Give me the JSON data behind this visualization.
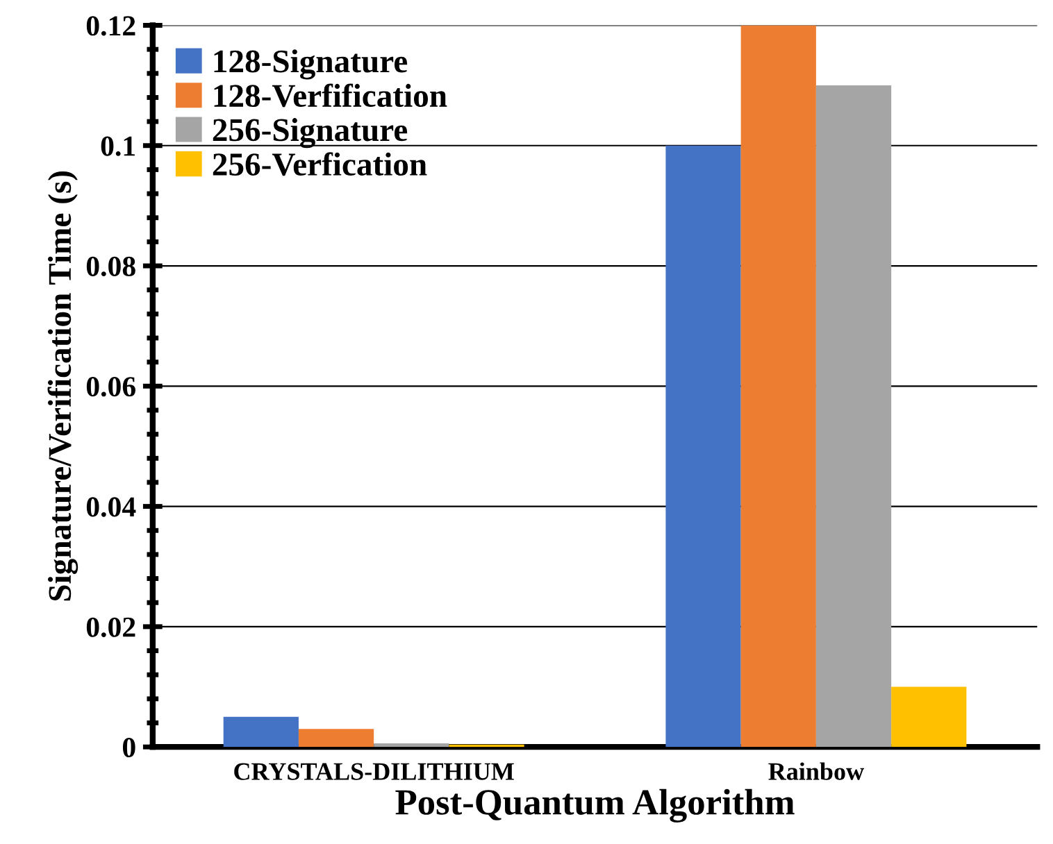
{
  "chart_data": {
    "type": "bar",
    "xlabel": "Post-Quantum Algorithm",
    "ylabel": "Signature/Verification Time (s)",
    "categories": [
      "CRYSTALS-DILITHIUM",
      "Rainbow"
    ],
    "series": [
      {
        "name": "128-Signature",
        "color": "#4472c4",
        "values": [
          0.005,
          0.1
        ]
      },
      {
        "name": "128-Verfification",
        "color": "#ed7d31",
        "values": [
          0.003,
          0.12
        ]
      },
      {
        "name": "256-Signature",
        "color": "#a5a5a5",
        "values": [
          0.0006,
          0.11
        ]
      },
      {
        "name": "256-Verfication",
        "color": "#ffc000",
        "values": [
          0.0004,
          0.01
        ]
      }
    ],
    "ylim": [
      0,
      0.12
    ],
    "yticks": [
      {
        "value": 0,
        "label": "0"
      },
      0.02,
      0.04,
      0.06,
      0.08,
      0.1,
      0.12
    ],
    "grid": "y",
    "legend": "top left"
  }
}
